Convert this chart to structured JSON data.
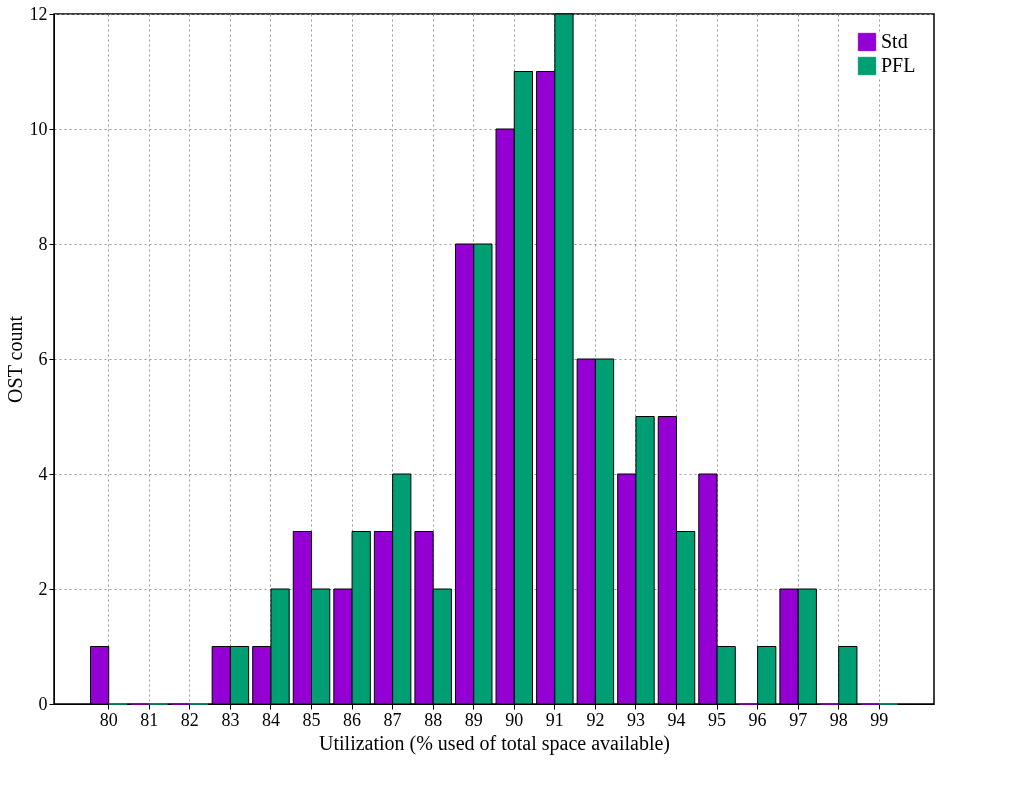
{
  "chart_data": {
    "type": "bar",
    "xlabel": "Utilization (% used of total space available)",
    "ylabel": "OST count",
    "categories": [
      "80",
      "81",
      "82",
      "83",
      "84",
      "85",
      "86",
      "87",
      "88",
      "89",
      "90",
      "91",
      "92",
      "93",
      "94",
      "95",
      "96",
      "97",
      "98",
      "99"
    ],
    "series": [
      {
        "name": "Std",
        "color": "#9400d3",
        "values": [
          1,
          0,
          0,
          1,
          1,
          3,
          2,
          3,
          3,
          8,
          10,
          11,
          6,
          4,
          5,
          4,
          0,
          2,
          0,
          0
        ]
      },
      {
        "name": "PFL",
        "color": "#009e73",
        "values": [
          0,
          0,
          0,
          1,
          2,
          2,
          3,
          4,
          2,
          8,
          11,
          12,
          6,
          5,
          3,
          1,
          1,
          2,
          1,
          0
        ]
      }
    ],
    "ylim": [
      0,
      12
    ],
    "yticks": [
      0,
      2,
      4,
      6,
      8,
      10,
      12
    ],
    "grid": true,
    "legend": "top right"
  }
}
